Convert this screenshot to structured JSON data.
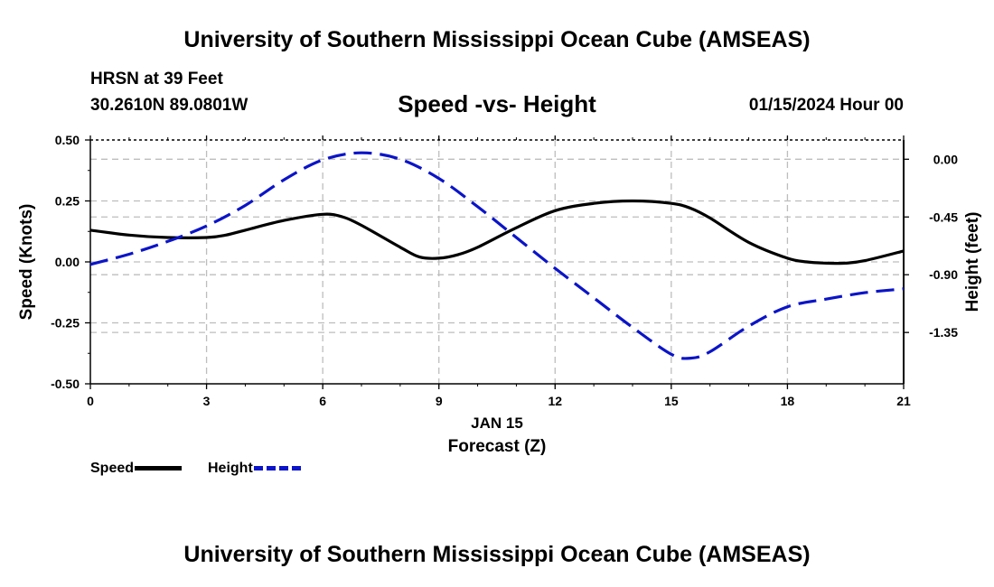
{
  "header": {
    "title": "University of Southern Mississippi Ocean Cube (AMSEAS)",
    "station": "HRSN at 39 Feet",
    "coords": "30.2610N  89.0801W",
    "subtitle": "Speed -vs- Height",
    "datetime": "01/15/2024 Hour 00"
  },
  "footer": {
    "title": "University of Southern Mississippi Ocean Cube (AMSEAS)"
  },
  "legend": {
    "speed": "Speed",
    "height": "Height"
  },
  "colors": {
    "speed": "#000000",
    "height": "#0b14c8",
    "grid": "#bdbdbd"
  },
  "chart_data": {
    "type": "line",
    "xlabel": "Forecast (Z)",
    "xlabel_date": "JAN 15",
    "ylabel_left": "Speed (Knots)",
    "ylabel_right": "Height (feet)",
    "xlim": [
      0,
      21
    ],
    "ylim_left": [
      -0.5,
      0.5
    ],
    "ylim_right": [
      -1.75,
      0.15
    ],
    "x_ticks": [
      "0",
      "3",
      "6",
      "9",
      "12",
      "15",
      "18",
      "21"
    ],
    "y_left_ticks": [
      "0.50",
      "0.25",
      "0.00",
      "-0.25",
      "-0.50"
    ],
    "y_right_ticks": [
      "0.00",
      "-0.45",
      "-0.90",
      "-1.35"
    ],
    "grid": true,
    "series": [
      {
        "name": "Speed",
        "axis": "left",
        "style": "solid",
        "x": [
          0,
          1,
          2,
          3,
          3.5,
          4,
          5,
          6,
          6.5,
          7,
          8,
          8.5,
          9,
          9.5,
          10,
          11,
          12,
          13,
          14,
          15,
          15.5,
          16,
          17,
          18,
          18.5,
          19,
          19.5,
          20,
          21
        ],
        "values": [
          0.13,
          0.11,
          0.1,
          0.1,
          0.11,
          0.13,
          0.17,
          0.195,
          0.185,
          0.15,
          0.06,
          0.02,
          0.015,
          0.03,
          0.06,
          0.14,
          0.21,
          0.24,
          0.25,
          0.24,
          0.22,
          0.18,
          0.08,
          0.015,
          0.0,
          -0.005,
          -0.005,
          0.005,
          0.045
        ]
      },
      {
        "name": "Height",
        "axis": "right",
        "style": "dashed",
        "x": [
          0,
          1,
          2,
          3,
          4,
          5,
          6,
          7,
          8,
          9,
          10,
          11,
          12,
          13,
          14,
          15,
          15.5,
          16,
          17,
          18,
          19,
          20,
          21
        ],
        "values": [
          -0.82,
          -0.74,
          -0.64,
          -0.52,
          -0.36,
          -0.16,
          -0.005,
          0.05,
          0.0,
          -0.15,
          -0.37,
          -0.61,
          -0.85,
          -1.08,
          -1.31,
          -1.52,
          -1.55,
          -1.5,
          -1.3,
          -1.15,
          -1.09,
          -1.04,
          -1.01
        ]
      }
    ]
  }
}
